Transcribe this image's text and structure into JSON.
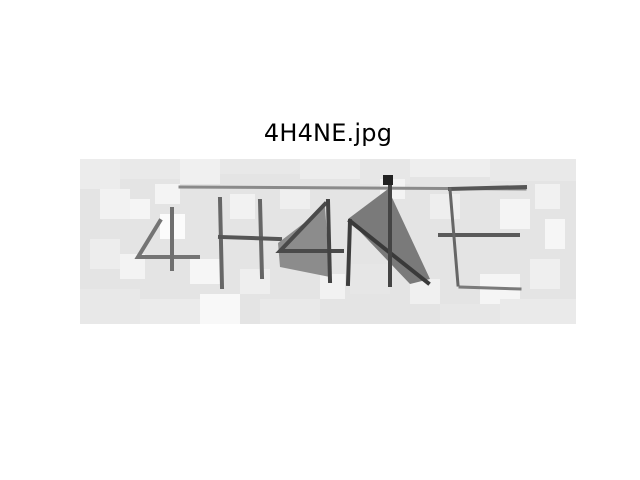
{
  "figure": {
    "title": "4H4NE.jpg"
  },
  "image": {
    "captcha_text": "4H4NE",
    "style": "grayscale pixelated captcha",
    "colors": {
      "background": "#e6e6e6",
      "ink": "#6f6f6f",
      "dark_ink": "#3a3a3a"
    }
  }
}
